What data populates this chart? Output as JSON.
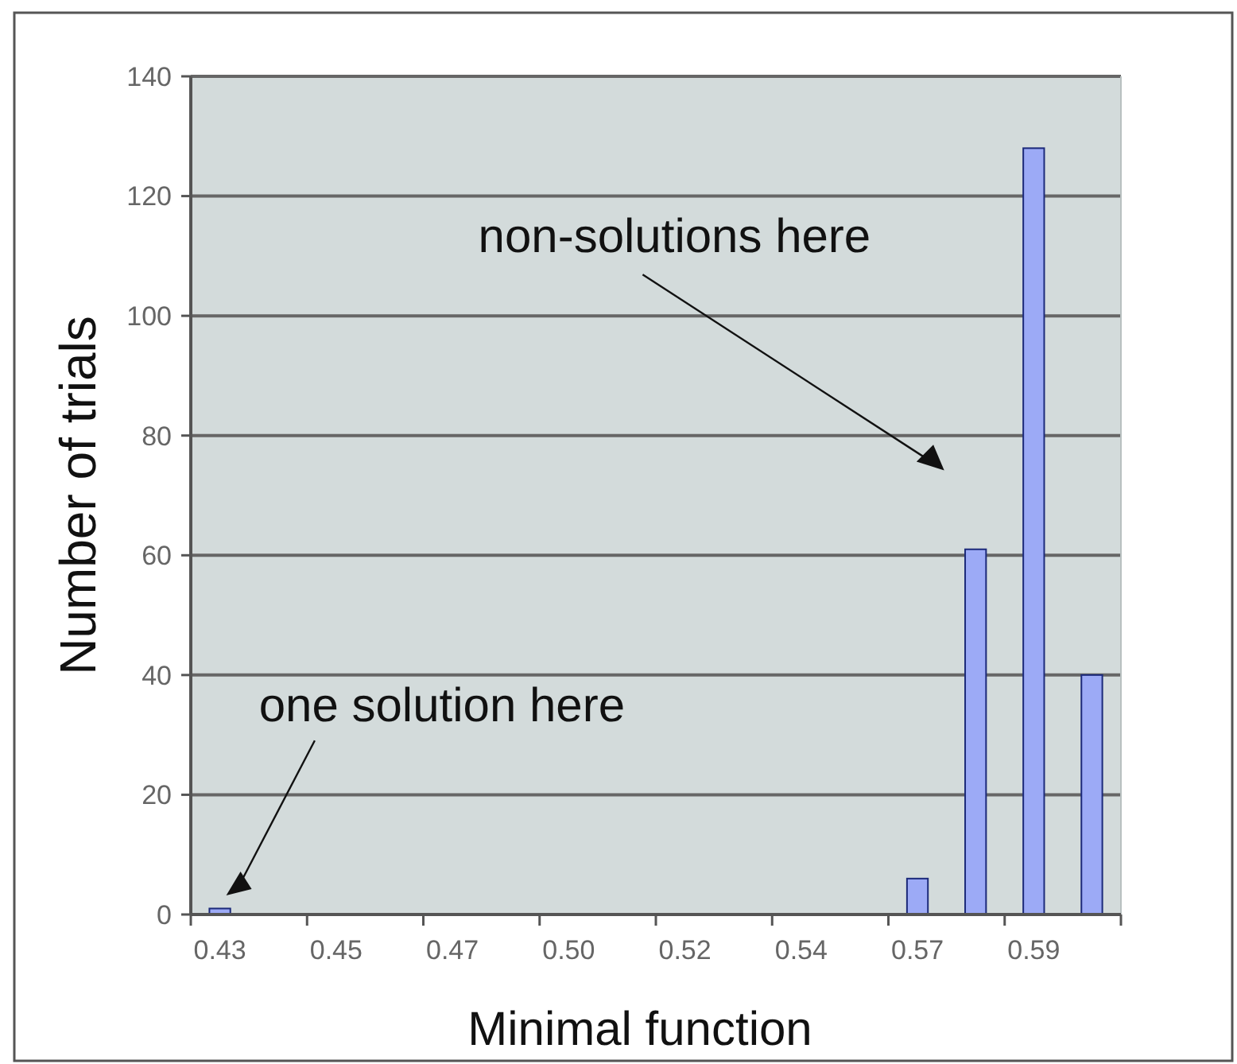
{
  "chart_data": {
    "type": "bar",
    "xlabel": "Minimal function",
    "ylabel": "Number of trials",
    "categories": [
      "0.43",
      null,
      "0.45",
      null,
      "0.47",
      null,
      "0.50",
      null,
      "0.52",
      null,
      "0.54",
      null,
      "0.57",
      null,
      "0.59",
      null
    ],
    "values": [
      1,
      0,
      0,
      0,
      0,
      0,
      0,
      0,
      0,
      0,
      0,
      0,
      6,
      61,
      128,
      40
    ],
    "color": "#9caaf6",
    "ylim": [
      0,
      140
    ],
    "yticks": [
      0,
      20,
      40,
      60,
      80,
      100,
      120,
      140
    ],
    "grid": "y",
    "annotations": [
      "non-solutions here",
      "one solution here"
    ]
  }
}
